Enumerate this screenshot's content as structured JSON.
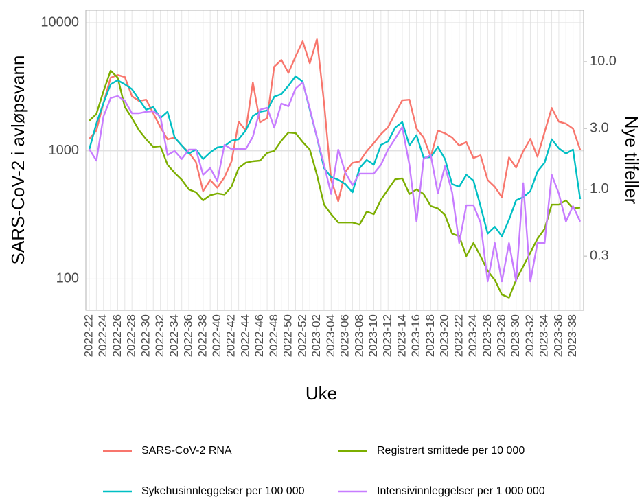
{
  "chart_data": {
    "type": "line",
    "log_scale": true,
    "grid": true,
    "x_label": "Uke",
    "y_label": "SARS-CoV-2 i avløpsvann",
    "y2_label": "Nye tilfeller",
    "categories": [
      "2022-22",
      null,
      "2022-24",
      null,
      "2022-26",
      null,
      "2022-28",
      null,
      "2022-30",
      null,
      "2022-32",
      null,
      "2022-34",
      null,
      "2022-36",
      null,
      "2022-38",
      null,
      "2022-40",
      null,
      "2022-42",
      null,
      "2022-44",
      null,
      "2022-46",
      null,
      "2022-48",
      null,
      "2022-50",
      null,
      "2022-52",
      null,
      "2023-02",
      null,
      "2023-04",
      null,
      "2023-06",
      null,
      "2023-08",
      null,
      "2023-10",
      null,
      "2023-12",
      null,
      "2023-14",
      null,
      "2023-16",
      null,
      "2023-18",
      null,
      "2023-20",
      null,
      "2023-22",
      null,
      "2023-24",
      null,
      "2023-26",
      null,
      "2023-28",
      null,
      "2023-30",
      null,
      "2023-32",
      null,
      "2023-34",
      null,
      "2023-36",
      null,
      "2023-38",
      null
    ],
    "ylim": [
      57,
      12500
    ],
    "yticks": [
      100,
      1000,
      10000
    ],
    "y2lim": [
      0.113,
      25.3
    ],
    "y2ticks": [
      0.3,
      {
        "value": 1,
        "label": "1.0"
      },
      {
        "value": 3,
        "label": "3.0"
      },
      {
        "value": 10,
        "label": "10.0"
      }
    ],
    "legend_position": "bottom",
    "series": [
      {
        "name": "SARS-CoV-2 RNA",
        "color": "#F8766D",
        "values": [
          1240,
          1440,
          2360,
          3720,
          3910,
          3770,
          2670,
          2450,
          2510,
          1960,
          1530,
          1230,
          1270,
          1100,
          970,
          816,
          485,
          592,
          516,
          622,
          826,
          1690,
          1440,
          3420,
          1670,
          1800,
          4540,
          5130,
          4060,
          5460,
          7160,
          4830,
          7430,
          2360,
          592,
          404,
          686,
          805,
          826,
          993,
          1150,
          1350,
          1530,
          1960,
          2480,
          2510,
          1490,
          1270,
          900,
          1440,
          1370,
          1270,
          1100,
          1170,
          879,
          923,
          592,
          523,
          435,
          889,
          740,
          993,
          1240,
          900,
          1400,
          2160,
          1690,
          1630,
          1490,
          1020
        ]
      },
      {
        "name": "Registrert smittede per 10 000",
        "color": "#7CAE00",
        "axis": "y2",
        "values": [
          3.45,
          3.9,
          5.87,
          8.51,
          7.52,
          4.42,
          3.62,
          2.9,
          2.47,
          2.15,
          2.18,
          1.56,
          1.35,
          1.19,
          1.0,
          0.95,
          0.82,
          0.9,
          0.93,
          0.91,
          1.05,
          1.47,
          1.62,
          1.66,
          1.68,
          1.93,
          2.0,
          2.41,
          2.79,
          2.76,
          2.35,
          2.05,
          1.3,
          0.76,
          0.64,
          0.55,
          0.55,
          0.55,
          0.53,
          0.67,
          0.64,
          0.83,
          1.0,
          1.2,
          1.22,
          0.92,
          1.0,
          0.92,
          0.74,
          0.71,
          0.63,
          0.45,
          0.43,
          0.3,
          0.38,
          0.3,
          0.23,
          0.195,
          0.15,
          0.142,
          0.195,
          0.25,
          0.32,
          0.41,
          0.49,
          0.76,
          0.76,
          0.82,
          0.71,
          0.72
        ]
      },
      {
        "name": "Sykehusinnleggelser per 100 000",
        "color": "#00BFC4",
        "axis": "y2",
        "values": [
          2.05,
          3.28,
          4.75,
          6.65,
          7.16,
          6.65,
          6.1,
          5.06,
          4.21,
          4.42,
          3.62,
          4.06,
          2.56,
          2.21,
          1.91,
          2.05,
          1.73,
          1.95,
          2.13,
          2.18,
          2.41,
          2.47,
          2.9,
          3.76,
          4.06,
          4.15,
          5.32,
          5.58,
          6.49,
          7.71,
          6.98,
          4.21,
          2.56,
          1.47,
          1.25,
          1.19,
          1.1,
          0.95,
          1.47,
          1.7,
          1.56,
          2.23,
          2.38,
          3.05,
          3.37,
          2.21,
          2.66,
          1.77,
          1.79,
          2.15,
          1.73,
          1.1,
          1.05,
          1.3,
          1.17,
          0.74,
          0.45,
          0.51,
          0.43,
          0.58,
          0.82,
          0.87,
          0.97,
          1.38,
          1.62,
          2.47,
          2.1,
          1.91,
          2.05,
          0.84
        ]
      },
      {
        "name": "Intensivinnleggelser per 1 000 000",
        "color": "#C77CFF",
        "axis": "y2",
        "values": [
          2.07,
          1.68,
          3.72,
          5.19,
          5.38,
          4.94,
          3.95,
          3.95,
          4.06,
          4.1,
          3.72,
          1.86,
          2.0,
          1.73,
          2.05,
          2.05,
          1.3,
          1.47,
          1.16,
          2.23,
          2.07,
          2.07,
          2.07,
          2.59,
          4.21,
          4.36,
          3.05,
          4.7,
          4.48,
          6.17,
          6.9,
          4.31,
          2.56,
          1.56,
          0.92,
          2.05,
          1.35,
          1.08,
          1.33,
          1.33,
          1.33,
          1.56,
          2.05,
          2.5,
          3.08,
          1.56,
          0.56,
          1.73,
          1.86,
          0.93,
          1.52,
          0.95,
          0.38,
          0.75,
          0.75,
          0.55,
          0.19,
          0.38,
          0.19,
          0.38,
          0.19,
          1.12,
          0.19,
          0.38,
          0.38,
          1.3,
          0.93,
          0.56,
          0.74,
          0.56
        ]
      }
    ]
  }
}
